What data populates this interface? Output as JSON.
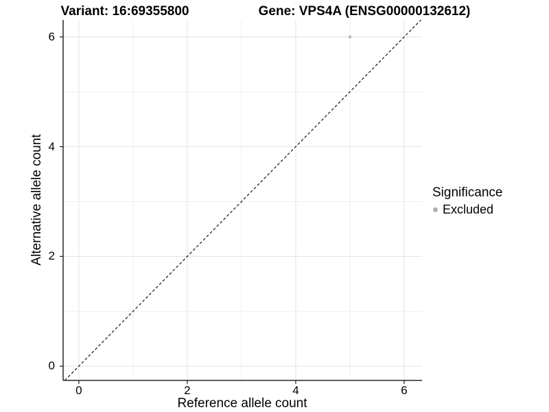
{
  "chart_data": {
    "type": "scatter",
    "titles": {
      "left": "Variant: 16:69355800",
      "right": "Gene: VPS4A (ENSG00000132612)"
    },
    "xlabel": "Reference allele count",
    "ylabel": "Alternative allele count",
    "xlim": [
      -0.29,
      6.33
    ],
    "ylim": [
      -0.26,
      6.31
    ],
    "xticks": [
      0,
      2,
      4,
      6
    ],
    "yticks": [
      0,
      2,
      4,
      6
    ],
    "minor_xticks": [
      1,
      3,
      5
    ],
    "minor_yticks": [
      1,
      3,
      5
    ],
    "grid": true,
    "identity_line": {
      "equation": "y = x",
      "style": "dashed"
    },
    "points": [
      {
        "x": 5,
        "y": 6,
        "series": "Excluded"
      }
    ],
    "legend": {
      "position": "right",
      "title": "Significance",
      "items": [
        {
          "label": "Excluded",
          "color": "#b0b0b0"
        }
      ]
    }
  },
  "colors": {
    "background": "#ffffff",
    "grid_major": "#e3e3e3",
    "grid_minor": "#efefef",
    "axis_line": "#262626",
    "tick_mark": "#262626",
    "dashed_line": "#111111",
    "point": "#b9b9b9",
    "text": "#000000"
  }
}
